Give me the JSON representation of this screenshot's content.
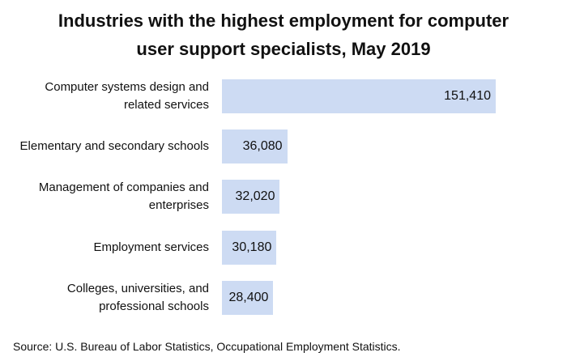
{
  "chart_data": {
    "type": "bar",
    "orientation": "horizontal",
    "title": "Industries with the highest employment for computer user support specialists, May 2019",
    "categories": [
      "Computer systems design and related services",
      "Elementary and secondary schools",
      "Management of companies and enterprises",
      "Employment services",
      "Colleges, universities, and professional schools"
    ],
    "values": [
      151410,
      36080,
      32020,
      30180,
      28400
    ],
    "value_labels": [
      "151,410",
      "36,080",
      "32,020",
      "30,180",
      "28,400"
    ],
    "color": "#cddbf3",
    "source": "Source: U.S. Bureau of Labor Statistics, Occupational Employment Statistics."
  }
}
